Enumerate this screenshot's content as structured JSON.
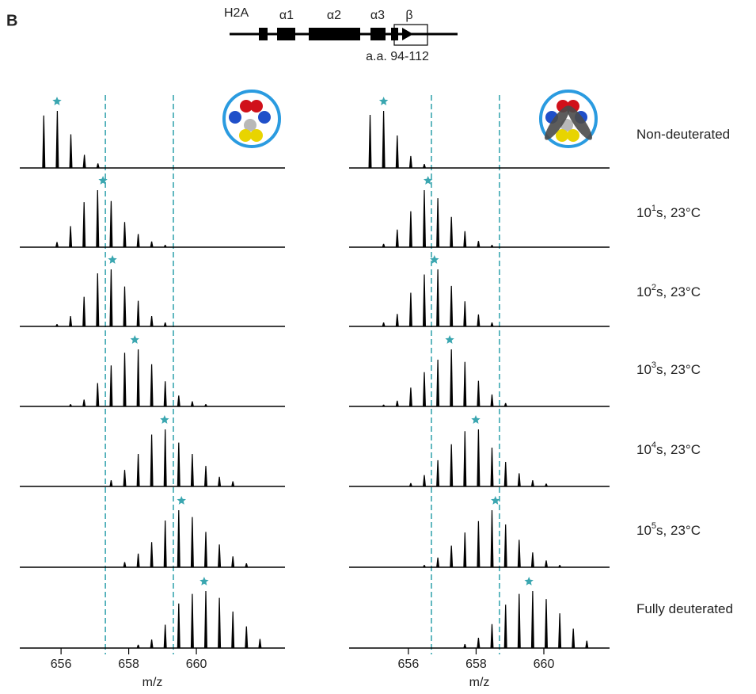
{
  "panel_label": "B",
  "diagram": {
    "protein": "H2A",
    "elements": [
      "α1",
      "α2",
      "α3",
      "β"
    ],
    "region": "a.a. 94-112"
  },
  "row_labels": [
    {
      "text": "Non-deuterated"
    },
    {
      "base": "10",
      "sup": "1",
      "rest": "s, 23°C"
    },
    {
      "base": "10",
      "sup": "2",
      "rest": "s, 23°C"
    },
    {
      "base": "10",
      "sup": "3",
      "rest": "s, 23°C"
    },
    {
      "base": "10",
      "sup": "4",
      "rest": "s, 23°C"
    },
    {
      "base": "10",
      "sup": "5",
      "rest": "s, 23°C"
    },
    {
      "text": "Fully deuterated"
    }
  ],
  "chart_data": [
    {
      "type": "spectrum",
      "xlabel": "m/z",
      "xlim": [
        654.78,
        662.62
      ],
      "xticks": [
        656,
        658,
        660
      ],
      "reference_lines": [
        657.31,
        659.32
      ],
      "color": "#000000",
      "star_color": "#3aa6b0",
      "spectra": [
        {
          "x": [
            655.49,
            655.89,
            656.29,
            656.69,
            657.09
          ],
          "values": [
            92,
            100,
            59,
            23,
            8
          ],
          "star": 655.88
        },
        {
          "x": [
            655.88,
            656.28,
            656.68,
            657.08,
            657.48,
            657.88,
            658.28,
            658.68,
            659.08
          ],
          "values": [
            9,
            37,
            79,
            100,
            81,
            44,
            23,
            10,
            4
          ],
          "star": 657.24
        },
        {
          "x": [
            655.88,
            656.28,
            656.68,
            657.08,
            657.48,
            657.88,
            658.28,
            658.68,
            659.08
          ],
          "values": [
            4,
            18,
            52,
            93,
            100,
            70,
            45,
            18,
            7
          ],
          "star": 657.52
        },
        {
          "x": [
            656.28,
            656.68,
            657.08,
            657.48,
            657.88,
            658.28,
            658.68,
            659.08,
            659.48,
            659.88,
            660.28
          ],
          "values": [
            4,
            12,
            41,
            72,
            94,
            100,
            74,
            44,
            19,
            9,
            4
          ],
          "star": 658.18
        },
        {
          "x": [
            657.48,
            657.88,
            658.28,
            658.68,
            659.08,
            659.48,
            659.88,
            660.28,
            660.68,
            661.08
          ],
          "values": [
            11,
            29,
            57,
            91,
            100,
            77,
            57,
            36,
            17,
            9
          ],
          "star": 659.06
        },
        {
          "x": [
            657.88,
            658.28,
            658.68,
            659.08,
            659.48,
            659.88,
            660.28,
            660.68,
            661.08,
            661.48
          ],
          "values": [
            9,
            24,
            44,
            82,
            100,
            88,
            62,
            40,
            19,
            7
          ],
          "star": 659.56
        },
        {
          "x": [
            658.28,
            658.68,
            659.08,
            659.48,
            659.88,
            660.28,
            660.68,
            661.08,
            661.48,
            661.88
          ],
          "values": [
            6,
            15,
            41,
            78,
            95,
            100,
            88,
            64,
            38,
            16
          ],
          "star": 660.23
        }
      ]
    },
    {
      "type": "spectrum",
      "xlabel": "m/z",
      "xlim": [
        654.25,
        661.94
      ],
      "xticks": [
        656,
        658,
        660
      ],
      "reference_lines": [
        656.68,
        658.69
      ],
      "color": "#000000",
      "star_color": "#3aa6b0",
      "spectra": [
        {
          "x": [
            654.87,
            655.27,
            655.67,
            656.07,
            656.47
          ],
          "values": [
            93,
            100,
            57,
            21,
            7
          ],
          "star": 655.27
        },
        {
          "x": [
            655.27,
            655.67,
            656.07,
            656.47,
            656.87,
            657.27,
            657.67,
            658.07,
            658.47
          ],
          "values": [
            6,
            31,
            63,
            100,
            86,
            53,
            28,
            11,
            4
          ],
          "star": 656.58
        },
        {
          "x": [
            655.27,
            655.67,
            656.07,
            656.47,
            656.87,
            657.27,
            657.67,
            658.07,
            658.47
          ],
          "values": [
            7,
            22,
            59,
            91,
            100,
            71,
            44,
            21,
            7
          ],
          "star": 656.77
        },
        {
          "x": [
            655.27,
            655.67,
            656.07,
            656.47,
            656.87,
            657.27,
            657.67,
            658.07,
            658.47,
            658.87
          ],
          "values": [
            3,
            10,
            33,
            60,
            82,
            100,
            78,
            45,
            21,
            6
          ],
          "star": 657.22
        },
        {
          "x": [
            656.07,
            656.47,
            656.87,
            657.27,
            657.67,
            658.07,
            658.47,
            658.87,
            659.27,
            659.67,
            660.07
          ],
          "values": [
            6,
            20,
            46,
            74,
            97,
            100,
            68,
            43,
            23,
            11,
            5
          ],
          "star": 657.99
        },
        {
          "x": [
            656.47,
            656.87,
            657.27,
            657.67,
            658.07,
            658.47,
            658.87,
            659.27,
            659.67,
            660.07,
            660.47
          ],
          "values": [
            4,
            17,
            38,
            61,
            81,
            100,
            75,
            48,
            26,
            12,
            4
          ],
          "star": 658.57
        },
        {
          "x": [
            657.67,
            658.07,
            658.47,
            658.87,
            659.27,
            659.67,
            660.07,
            660.47,
            660.87,
            661.27
          ],
          "values": [
            7,
            18,
            42,
            76,
            95,
            100,
            86,
            61,
            34,
            13
          ],
          "star": 659.56
        }
      ]
    }
  ]
}
